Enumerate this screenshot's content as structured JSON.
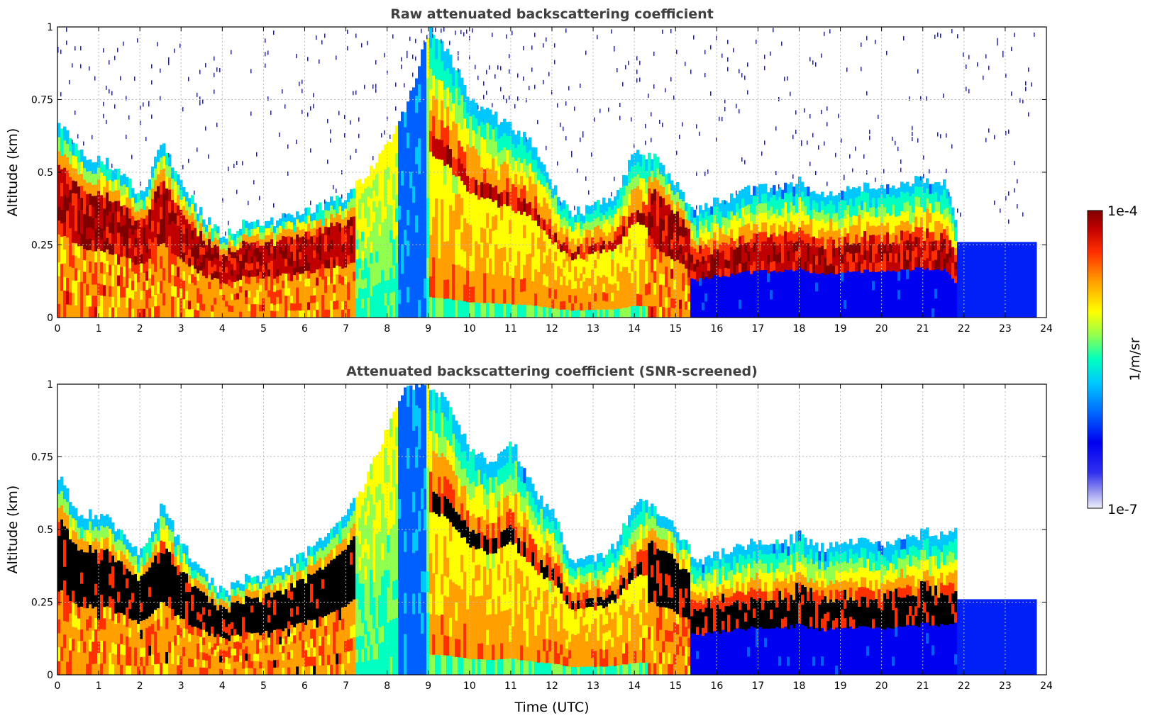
{
  "chart_data": [
    {
      "type": "heatmap",
      "title": "Raw attenuated backscattering coefficient",
      "xlabel": "",
      "ylabel": "Altitude (km)",
      "xlim": [
        0,
        24
      ],
      "ylim": [
        0,
        1
      ],
      "xticks": [
        0,
        1,
        2,
        3,
        4,
        5,
        6,
        7,
        8,
        9,
        10,
        11,
        12,
        13,
        14,
        15,
        16,
        17,
        18,
        19,
        20,
        21,
        22,
        23,
        24
      ],
      "yticks": [
        0,
        0.25,
        0.5,
        0.75,
        1
      ],
      "ytick_labels": [
        "0",
        "0.25",
        "0.5",
        "0.75",
        "1"
      ],
      "grid": true,
      "screened": false,
      "layer_top_km": {
        "x": [
          0,
          0.5,
          1,
          1.5,
          2,
          2.5,
          3,
          3.5,
          4,
          4.5,
          5,
          5.5,
          6,
          6.5,
          7,
          7.5,
          8,
          8.5,
          9,
          9.5,
          10,
          10.5,
          11,
          11.5,
          12,
          12.5,
          13,
          13.5,
          14,
          14.5,
          15,
          15.5,
          16,
          16.5,
          17,
          17.5,
          18,
          18.5,
          19,
          19.5,
          20,
          20.5,
          21,
          21.5,
          21.8
        ],
        "y": [
          0.68,
          0.56,
          0.55,
          0.5,
          0.42,
          0.6,
          0.45,
          0.35,
          0.28,
          0.33,
          0.32,
          0.35,
          0.37,
          0.39,
          0.42,
          0.5,
          0.6,
          0.75,
          1.0,
          0.9,
          0.75,
          0.7,
          0.65,
          0.6,
          0.45,
          0.36,
          0.38,
          0.42,
          0.58,
          0.55,
          0.45,
          0.37,
          0.4,
          0.43,
          0.45,
          0.44,
          0.47,
          0.43,
          0.44,
          0.45,
          0.44,
          0.45,
          0.48,
          0.47,
          0.3
        ]
      }
    },
    {
      "type": "heatmap",
      "title": "Attenuated backscattering coefficient (SNR-screened)",
      "xlabel": "Time (UTC)",
      "ylabel": "Altitude (km)",
      "xlim": [
        0,
        24
      ],
      "ylim": [
        0,
        1
      ],
      "xticks": [
        0,
        1,
        2,
        3,
        4,
        5,
        6,
        7,
        8,
        9,
        10,
        11,
        12,
        13,
        14,
        15,
        16,
        17,
        18,
        19,
        20,
        21,
        22,
        23,
        24
      ],
      "yticks": [
        0,
        0.25,
        0.5,
        0.75,
        1
      ],
      "ytick_labels": [
        "0",
        "0.25",
        "0.5",
        "0.75",
        "1"
      ],
      "grid": true,
      "screened": true,
      "layer_top_km": {
        "x": [
          0,
          0.5,
          1,
          1.5,
          2,
          2.5,
          3,
          3.5,
          4,
          4.5,
          5,
          5.5,
          6,
          6.5,
          7,
          7.5,
          8,
          8.5,
          9,
          9.5,
          10,
          10.5,
          11,
          11.5,
          12,
          12.5,
          13,
          13.5,
          14,
          14.5,
          15,
          15.5,
          16,
          16.5,
          17,
          17.5,
          18,
          18.5,
          19,
          19.5,
          20,
          20.5,
          21,
          21.5,
          21.8
        ],
        "y": [
          0.68,
          0.56,
          0.55,
          0.5,
          0.42,
          0.58,
          0.45,
          0.35,
          0.28,
          0.33,
          0.34,
          0.37,
          0.42,
          0.47,
          0.55,
          0.68,
          0.85,
          1.0,
          1.0,
          0.92,
          0.78,
          0.72,
          0.8,
          0.65,
          0.55,
          0.38,
          0.4,
          0.45,
          0.6,
          0.57,
          0.5,
          0.38,
          0.41,
          0.44,
          0.46,
          0.45,
          0.48,
          0.44,
          0.45,
          0.46,
          0.45,
          0.46,
          0.49,
          0.48,
          0.52
        ]
      }
    }
  ],
  "colorbar": {
    "label": "1/m/sr",
    "max_label": "1e-4",
    "min_label": "1e-7",
    "colors": [
      "#f0f0fa",
      "#5a5af0",
      "#0000f0",
      "#0060ff",
      "#00c8ff",
      "#00ffc8",
      "#80ff60",
      "#ffff00",
      "#ffa000",
      "#ff4000",
      "#d00000",
      "#800000"
    ]
  }
}
